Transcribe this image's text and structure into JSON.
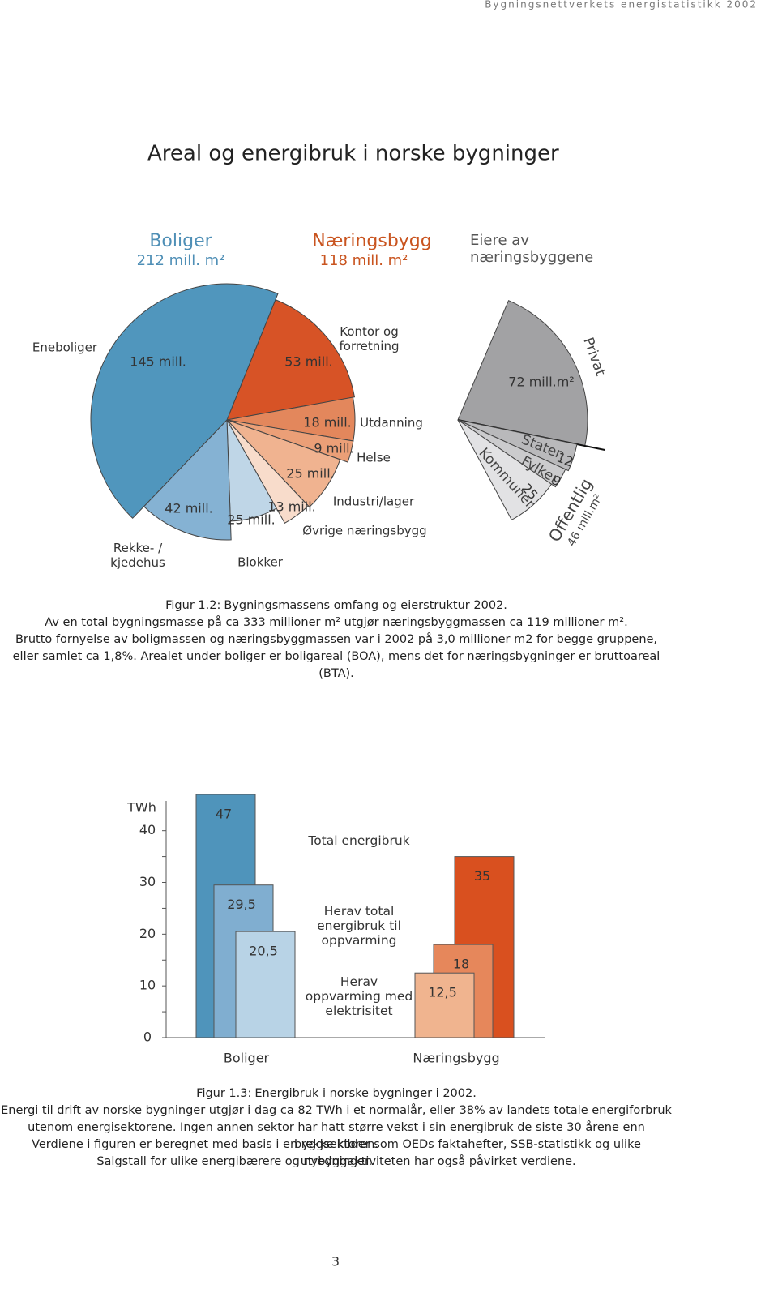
{
  "header": "Bygningsnettverkets energistatistikk 2002",
  "title": "Areal og energibruk i norske bygninger",
  "chart_data": [
    {
      "type": "pie",
      "groups": [
        {
          "name": "Boliger",
          "total": "212 mill. m²",
          "color": "#4f8fb6"
        },
        {
          "name": "Næringsbygg",
          "total": "118 mill. m²",
          "color": "#c9541f"
        }
      ],
      "categories": [
        "Kontor og forretning",
        "Utdanning",
        "Helse",
        "Industri/lager",
        "Øvrige næringsbygg",
        "Blokker",
        "Rekke- / kjedehus",
        "Eneboliger"
      ],
      "values": [
        53,
        18,
        9,
        25,
        13,
        25,
        42,
        145
      ],
      "value_labels": [
        "53 mill.",
        "18 mill.",
        "9 mill.",
        "25 mill.",
        "13 mill.",
        "25 mill.",
        "42 mill.",
        "145 mill."
      ],
      "colors": [
        "#d75326",
        "#e3875c",
        "#eb9f77",
        "#f0b390",
        "#f8dccb",
        "#bfd6e7",
        "#85b2d3",
        "#5096bd"
      ]
    },
    {
      "type": "pie",
      "title": "Eiere av næringsbyggene",
      "categories": [
        "Privat",
        "Staten",
        "Fylker",
        "Kommuner"
      ],
      "values": [
        72,
        12,
        9,
        25
      ],
      "value_labels": [
        "72 mill.m²",
        "12",
        "9",
        "25"
      ],
      "colors": [
        "#a2a2a4",
        "#b9b9bb",
        "#cbcbcd",
        "#e2e2e4"
      ],
      "groups": [
        {
          "name": "Offentlig",
          "total": "46 mill.m²"
        }
      ]
    },
    {
      "type": "bar",
      "y_label": "TWh",
      "categories": [
        "Boliger",
        "Næringsbygg"
      ],
      "series": [
        {
          "name": "Total energibruk",
          "colors": [
            "#4f94bb",
            "#d9501f"
          ],
          "values": [
            47,
            35
          ],
          "value_labels": [
            "47",
            "35"
          ]
        },
        {
          "name": "Herav total energibruk til oppvarming",
          "colors": [
            "#80aed0",
            "#e6875b"
          ],
          "values": [
            29.5,
            18
          ],
          "value_labels": [
            "29,5",
            "18"
          ]
        },
        {
          "name": "Herav oppvarming med elektrisitet",
          "colors": [
            "#b8d3e6",
            "#f0b48f"
          ],
          "values": [
            20.5,
            12.5
          ],
          "value_labels": [
            "20,5",
            "12,5"
          ]
        }
      ],
      "ylim": [
        0,
        47
      ],
      "yticks": [
        0,
        10,
        20,
        30,
        40
      ],
      "minor_yticks": [
        5,
        15,
        25,
        35
      ]
    }
  ],
  "captions": [
    {
      "label": "Figur 1.2:",
      "lines": [
        "Bygningsmassens omfang og eierstruktur 2002.",
        "Av en total bygningsmasse på ca 333 millioner m² utgjør næringsbyggmassen ca 119 millioner m².",
        "Brutto fornyelse av boligmassen og næringsbyggmassen var i 2002 på 3,0 millioner m2 for begge gruppene,",
        "eller samlet ca 1,8%. Arealet under boliger er boligareal (BOA), mens det for næringsbygninger er bruttoareal (BTA)."
      ]
    },
    {
      "label": "Figur 1.3:",
      "lines": [
        "Energibruk i norske bygninger i 2002.",
        "Energi til drift av norske bygninger utgjør i dag ca 82 TWh i et normalår, eller 38% av landets totale energiforbruk",
        "utenom energisektorene. Ingen annen sektor har hatt større vekst i sin energibruk de siste 30 årene enn byggsektoren.",
        "Verdiene i figuren er beregnet med basis i en rekke kilder som OEDs faktahefter, SSB-statistikk og ulike utredninger.",
        "Salgstall for ulike energibærere og nybyggaktiviteten har også påvirket verdiene."
      ]
    }
  ],
  "page_number": "3"
}
